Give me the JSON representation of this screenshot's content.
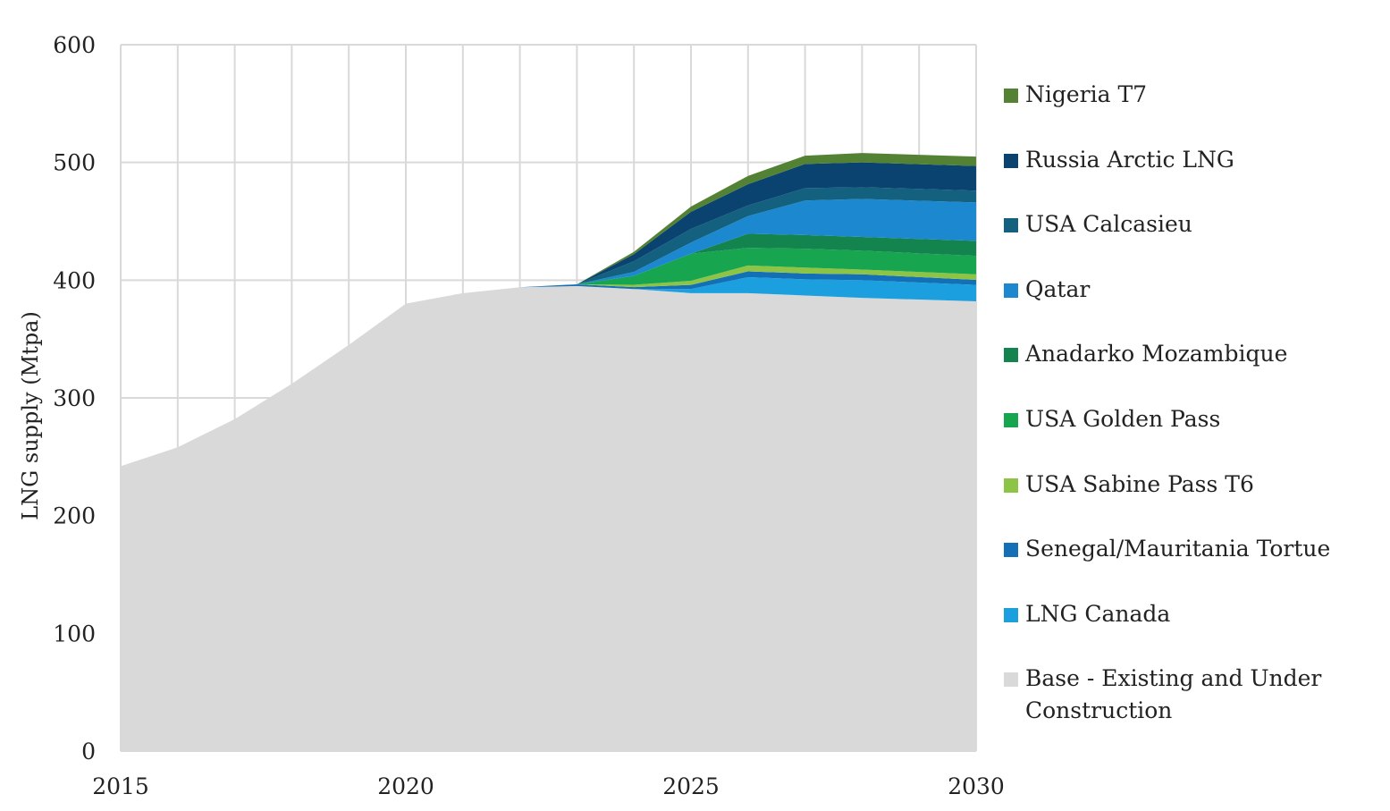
{
  "chart_data": {
    "type": "area",
    "stacked": true,
    "title": "",
    "xlabel": "",
    "ylabel": "LNG supply (Mtpa)",
    "xlim": [
      2015,
      2030
    ],
    "ylim": [
      0,
      600
    ],
    "x_ticks": [
      "2015",
      "2020",
      "2025",
      "2030"
    ],
    "y_ticks": [
      "0",
      "100",
      "200",
      "300",
      "400",
      "500",
      "600"
    ],
    "grid": true,
    "legend_position": "right",
    "x": [
      2015,
      2016,
      2017,
      2018,
      2019,
      2020,
      2021,
      2022,
      2023,
      2024,
      2025,
      2026,
      2027,
      2028,
      2029,
      2030
    ],
    "series": [
      {
        "name": "Base - Existing and Under Construction",
        "color": "#d9d9d9",
        "values": [
          242,
          258,
          282,
          312,
          345,
          380,
          389,
          394,
          395,
          392.5,
          389,
          389,
          387,
          385,
          383.5,
          382
        ]
      },
      {
        "name": "LNG Canada",
        "color": "#1b9fdf",
        "values": [
          0,
          0,
          0,
          0,
          0,
          0,
          0,
          0,
          0,
          0,
          3.5,
          13.5,
          13.7,
          15,
          14.5,
          14
        ]
      },
      {
        "name": "Senegal/Mauritania Tortue",
        "color": "#1470b6",
        "values": [
          0,
          0,
          0,
          0,
          0,
          0,
          0,
          0,
          1.5,
          1.6,
          3.5,
          5,
          5,
          5,
          4.6,
          4.3
        ]
      },
      {
        "name": "USA Sabine Pass T6",
        "color": "#8dc446",
        "values": [
          0,
          0,
          0,
          0,
          0,
          0,
          0,
          0,
          0,
          2,
          3.5,
          5,
          5,
          4,
          4.4,
          4.7
        ]
      },
      {
        "name": "USA Golden Pass",
        "color": "#18a550",
        "values": [
          0,
          0,
          0,
          0,
          0,
          0,
          0,
          0,
          0,
          7.6,
          23,
          15,
          16,
          16,
          15.8,
          15.7
        ]
      },
      {
        "name": "Anadarko Mozambique",
        "color": "#14844f",
        "values": [
          0,
          0,
          0,
          0,
          0,
          0,
          0,
          0,
          0,
          0,
          0,
          12,
          11.6,
          11.7,
          12.2,
          12.7
        ]
      },
      {
        "name": "Qatar",
        "color": "#1b88cf",
        "values": [
          0,
          0,
          0,
          0,
          0,
          0,
          0,
          0,
          0,
          3.4,
          9.5,
          15,
          29.4,
          32.3,
          32.5,
          32.6
        ]
      },
      {
        "name": "USA Calcasieu",
        "color": "#13607f",
        "values": [
          0,
          0,
          0,
          0,
          0,
          0,
          0,
          0,
          0,
          9,
          11.5,
          9,
          10.5,
          10,
          10,
          10
        ]
      },
      {
        "name": "Russia Arctic LNG",
        "color": "#0b4370",
        "values": [
          0,
          0,
          0,
          0,
          0,
          0,
          0,
          0,
          0,
          6,
          14.6,
          18,
          20.5,
          21,
          21,
          21
        ]
      },
      {
        "name": "Nigeria T7",
        "color": "#548235",
        "values": [
          0,
          0,
          0,
          0,
          0,
          0,
          0,
          0,
          0,
          2,
          4.4,
          7,
          7,
          8,
          8,
          8
        ]
      }
    ],
    "legend_order": [
      "Nigeria T7",
      "Russia Arctic LNG",
      "USA Calcasieu",
      "Qatar",
      "Anadarko Mozambique",
      "USA Golden Pass",
      "USA Sabine Pass T6",
      "Senegal/Mauritania Tortue",
      "LNG Canada",
      "Base - Existing and Under Construction"
    ]
  }
}
